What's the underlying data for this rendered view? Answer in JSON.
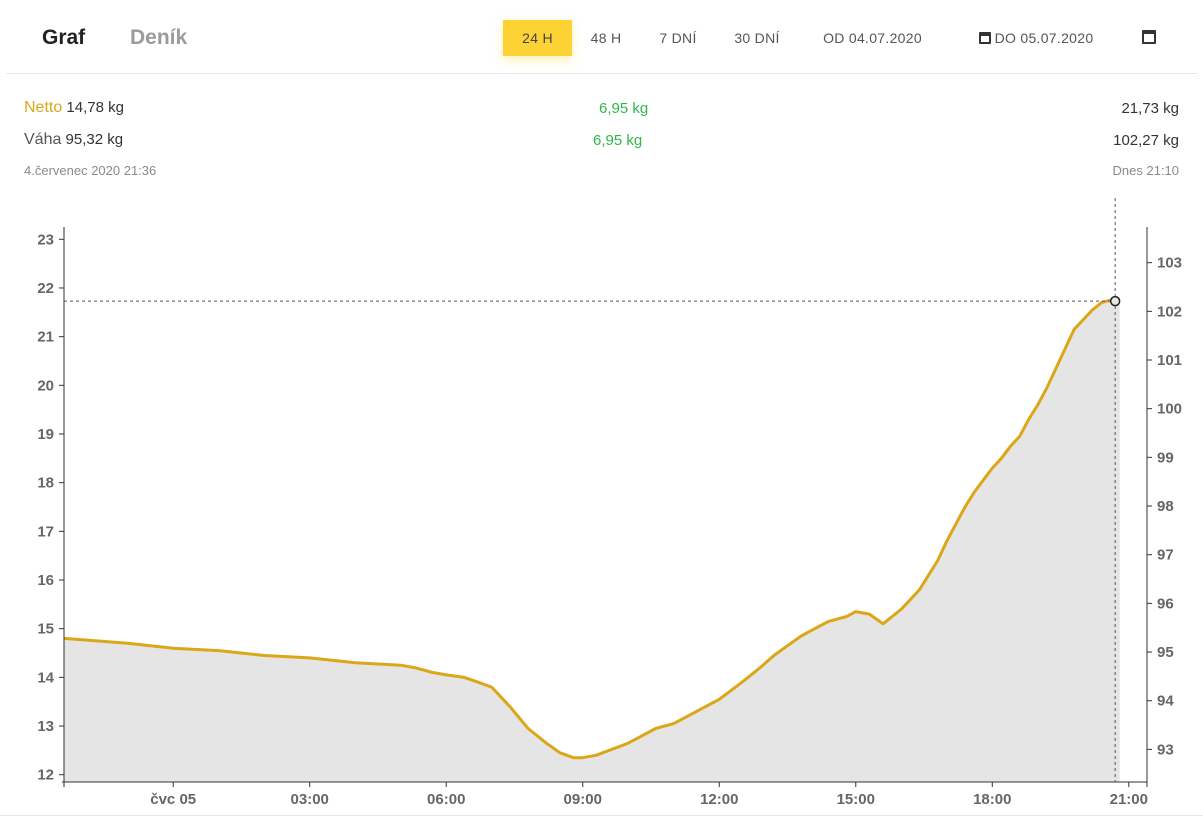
{
  "tabs": {
    "graph": "Graf",
    "diary": "Deník"
  },
  "ranges": [
    {
      "label": "24 H",
      "active": true
    },
    {
      "label": "48 H",
      "active": false
    },
    {
      "label": "7 DNÍ",
      "active": false
    },
    {
      "label": "30 DNÍ",
      "active": false
    }
  ],
  "date_from": "OD 04.07.2020",
  "date_to": "DO 05.07.2020",
  "summary": {
    "netto_label": "Netto",
    "netto_start": "14,78 kg",
    "netto_change": "6,95 kg",
    "netto_end": "21,73 kg",
    "vaha_label": "Váha",
    "vaha_start": "95,32 kg",
    "vaha_change": "6,95 kg",
    "vaha_end": "102,27 kg",
    "start_time": "4.červenec 2020 21:36",
    "end_time": "Dnes 21:10"
  },
  "colors": {
    "accent": "#fdd235",
    "line": "#dba617",
    "area": "#e5e5e5",
    "positive": "#2db84b"
  },
  "chart_data": {
    "type": "area",
    "x_unit": "hours since 04.07.2020 21:00",
    "series": [
      {
        "axis": "left",
        "x": [
          0.6,
          2.0,
          3.0,
          4.0,
          5.0,
          6.0,
          7.0,
          8.0,
          8.3,
          8.7,
          9.0,
          9.4,
          9.7,
          10.0,
          10.4,
          10.8,
          11.2,
          11.5,
          11.8,
          12.0,
          12.3,
          13.0,
          13.6,
          14.0,
          14.5,
          15.0,
          15.5,
          15.9,
          16.2,
          16.5,
          16.8,
          17.0,
          17.2,
          17.4,
          17.8,
          18.0,
          18.3,
          18.6,
          18.8,
          19.0,
          19.2,
          19.4,
          19.6,
          19.8,
          20.0,
          20.2,
          20.4,
          20.6,
          20.8,
          21.0,
          21.2,
          21.4,
          21.6,
          21.8,
          22.0,
          22.2,
          22.4,
          22.6,
          22.8,
          23.0,
          23.2,
          23.4,
          23.6,
          23.7,
          23.8
        ],
        "values": [
          14.8,
          14.7,
          14.6,
          14.55,
          14.45,
          14.4,
          14.3,
          14.25,
          14.2,
          14.1,
          14.05,
          14.0,
          13.9,
          13.8,
          13.4,
          12.95,
          12.65,
          12.45,
          12.35,
          12.35,
          12.4,
          12.65,
          12.95,
          13.05,
          13.3,
          13.55,
          13.9,
          14.2,
          14.45,
          14.65,
          14.85,
          14.95,
          15.05,
          15.15,
          15.25,
          15.35,
          15.3,
          15.1,
          15.25,
          15.4,
          15.6,
          15.8,
          16.1,
          16.4,
          16.8,
          17.15,
          17.5,
          17.8,
          18.05,
          18.3,
          18.5,
          18.75,
          18.95,
          19.3,
          19.6,
          19.95,
          20.35,
          20.75,
          21.15,
          21.35,
          21.55,
          21.7,
          21.75,
          21.73,
          21.73
        ]
      }
    ],
    "y_left": {
      "min": 11.85,
      "max": 23.15,
      "ticks": [
        "23",
        "22",
        "21",
        "20",
        "19",
        "18",
        "17",
        "16",
        "15",
        "14",
        "13",
        "12"
      ]
    },
    "y_right": {
      "ticks": [
        "103",
        "102",
        "101",
        "100",
        "99",
        "98",
        "97",
        "96",
        "95",
        "94",
        "93"
      ]
    },
    "x_axis": {
      "min": 0.6,
      "max": 24.4,
      "tick_labels": [
        "čvc 05",
        "03:00",
        "06:00",
        "09:00",
        "12:00",
        "15:00",
        "18:00",
        "21:00"
      ],
      "tick_hours": [
        3,
        6,
        9,
        12,
        15,
        18,
        21,
        24
      ]
    },
    "crosshair": {
      "x": 23.7,
      "y": 21.73
    },
    "grid": false
  }
}
